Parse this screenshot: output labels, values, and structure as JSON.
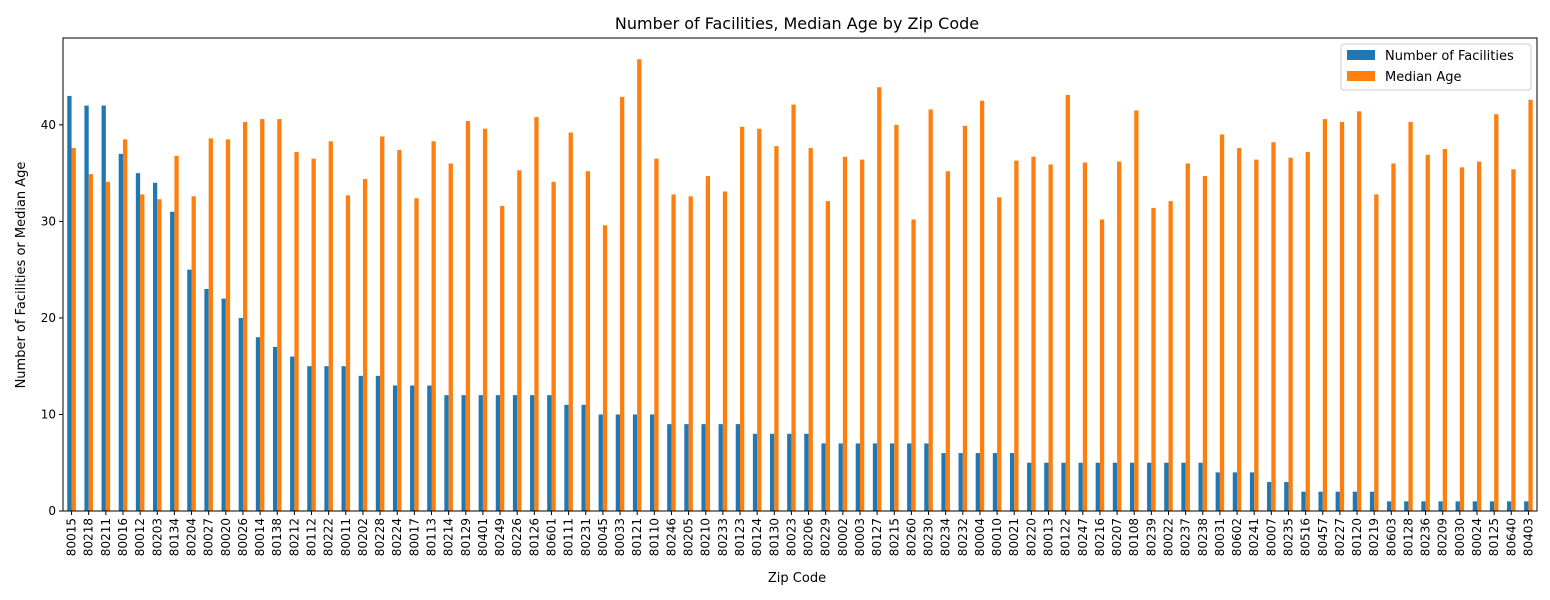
{
  "colors": {
    "facilities": "#1f77b4",
    "median_age": "#ff7f0e"
  },
  "chart_data": {
    "type": "bar",
    "title": "Number of Facilities, Median Age by Zip Code",
    "xlabel": "Zip Code",
    "ylabel": "Number of Facilities or Median Age",
    "ylim": [
      0,
      49
    ],
    "yticks": [
      0,
      10,
      20,
      30,
      40
    ],
    "legend_position": "top-right",
    "categories": [
      "80015",
      "80218",
      "80211",
      "80016",
      "80012",
      "80203",
      "80134",
      "80204",
      "80027",
      "80020",
      "80026",
      "80014",
      "80138",
      "80212",
      "80112",
      "80222",
      "80011",
      "80202",
      "80228",
      "80224",
      "80017",
      "80113",
      "80214",
      "80129",
      "80401",
      "80249",
      "80226",
      "80126",
      "80601",
      "80111",
      "80231",
      "80045",
      "80033",
      "80121",
      "80110",
      "80246",
      "80205",
      "80210",
      "80233",
      "80123",
      "80124",
      "80130",
      "80023",
      "80206",
      "80229",
      "80002",
      "80003",
      "80127",
      "80215",
      "80260",
      "80230",
      "80234",
      "80232",
      "80004",
      "80010",
      "80021",
      "80220",
      "80013",
      "80122",
      "80247",
      "80216",
      "80207",
      "80108",
      "80239",
      "80022",
      "80237",
      "80238",
      "80031",
      "80602",
      "80241",
      "80007",
      "80235",
      "80516",
      "80457",
      "80227",
      "80120",
      "80219",
      "80603",
      "80128",
      "80236",
      "80209",
      "80030",
      "80024",
      "80125",
      "80640",
      "80403"
    ],
    "series": [
      {
        "name": "Number of Facilities",
        "values": [
          43,
          42,
          42,
          37,
          35,
          34,
          31,
          25,
          23,
          22,
          20,
          18,
          17,
          16,
          15,
          15,
          15,
          14,
          14,
          13,
          13,
          13,
          12,
          12,
          12,
          12,
          12,
          12,
          12,
          11,
          11,
          10,
          10,
          10,
          10,
          9,
          9,
          9,
          9,
          9,
          8,
          8,
          8,
          8,
          7,
          7,
          7,
          7,
          7,
          7,
          7,
          6,
          6,
          6,
          6,
          6,
          5,
          5,
          5,
          5,
          5,
          5,
          5,
          5,
          5,
          5,
          5,
          4,
          4,
          4,
          3,
          3,
          2,
          2,
          2,
          2,
          2,
          1,
          1,
          1,
          1,
          1,
          1,
          1,
          1,
          1
        ]
      },
      {
        "name": "Median Age",
        "values": [
          37.6,
          34.9,
          34.1,
          38.5,
          32.8,
          32.3,
          36.8,
          32.6,
          38.6,
          38.5,
          40.3,
          40.6,
          40.6,
          37.2,
          36.5,
          38.3,
          32.7,
          34.4,
          38.8,
          37.4,
          32.4,
          38.3,
          36.0,
          40.4,
          39.6,
          31.6,
          35.3,
          40.8,
          34.1,
          39.2,
          35.2,
          29.6,
          42.9,
          46.8,
          36.5,
          32.8,
          32.6,
          34.7,
          33.1,
          39.8,
          39.6,
          37.8,
          42.1,
          37.6,
          32.1,
          36.7,
          36.4,
          43.9,
          40.0,
          30.2,
          41.6,
          35.2,
          39.9,
          42.5,
          32.5,
          36.3,
          36.7,
          35.9,
          43.1,
          36.1,
          30.2,
          36.2,
          41.5,
          31.4,
          32.1,
          36.0,
          34.7,
          39.0,
          37.6,
          36.4,
          38.2,
          36.6,
          37.2,
          40.6,
          40.3,
          41.4,
          32.8,
          36.0,
          40.3,
          36.9,
          37.5,
          35.6,
          36.2,
          41.1,
          35.4,
          42.6
        ]
      }
    ]
  }
}
